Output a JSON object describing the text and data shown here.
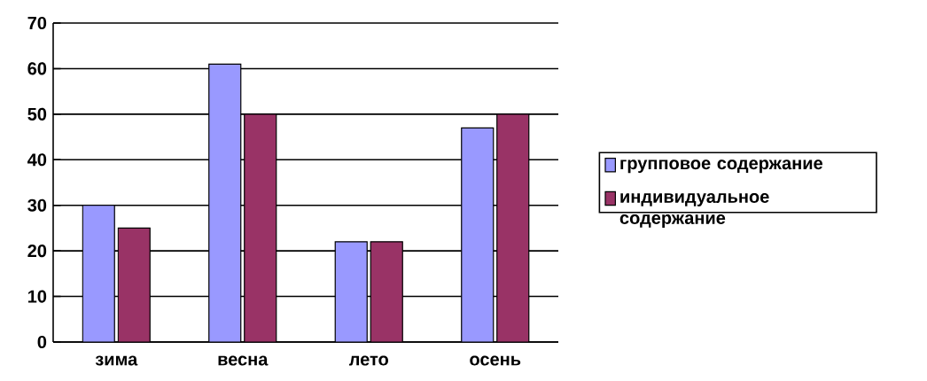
{
  "chart_data": {
    "type": "bar",
    "categories": [
      "зима",
      "весна",
      "лето",
      "осень"
    ],
    "series": [
      {
        "name": "групповое содержание",
        "color": "#9999ff",
        "values": [
          30,
          61,
          22,
          47
        ]
      },
      {
        "name": "индивидуальное содержание",
        "color": "#993366",
        "values": [
          25,
          50,
          22,
          50
        ]
      }
    ],
    "ylim": [
      0,
      70
    ],
    "yticks": [
      0,
      10,
      20,
      30,
      40,
      50,
      60,
      70
    ],
    "grid": "y",
    "legend": "right"
  }
}
